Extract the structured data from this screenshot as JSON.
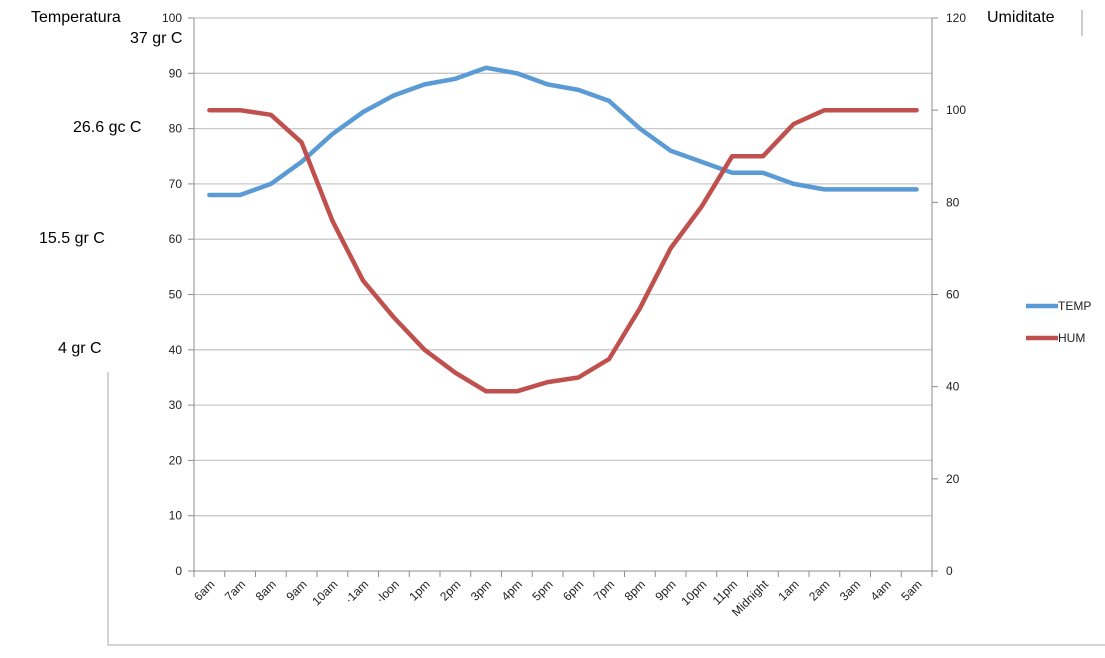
{
  "labels": {
    "left_title": "Temperatura",
    "right_title": "Umiditate",
    "celsius_marks": [
      "37 gr C",
      "26.6 gc C",
      "15.5 gr C",
      "4 gr C"
    ]
  },
  "colors": {
    "temp": "#5b9bd5",
    "hum": "#c0504d",
    "grid": "#c8c8c8",
    "axis": "#8c8c8c"
  },
  "chart_data": {
    "type": "line",
    "categories": [
      "6am",
      "7am",
      "8am",
      "9am",
      "10am",
      "11am",
      "Noon",
      "1pm",
      "2pm",
      "3pm",
      "4pm",
      "5pm",
      "6pm",
      "7pm",
      "8pm",
      "9pm",
      "10pm",
      "11pm",
      "Midnight",
      "1am",
      "2am",
      "3am",
      "4am",
      "5am"
    ],
    "category_display": [
      "6am",
      "7am",
      "8am",
      "9am",
      "10am",
      "·1am",
      "·loon",
      "1pm",
      "2pm",
      "3pm",
      "4pm",
      "5pm",
      "6pm",
      "7pm",
      "8pm",
      "9pm",
      "10pm",
      "11pm",
      "Midnight",
      "1am",
      "2am",
      "3am",
      "4am",
      "5am"
    ],
    "series": [
      {
        "name": "TEMP",
        "axis": "left",
        "values": [
          68,
          68,
          70,
          74,
          79,
          83,
          86,
          88,
          89,
          91,
          90,
          88,
          87,
          85,
          80,
          76,
          74,
          72,
          72,
          70,
          69,
          69,
          69,
          69
        ]
      },
      {
        "name": "HUM",
        "axis": "right",
        "values": [
          100,
          100,
          99,
          93,
          76,
          63,
          55,
          48,
          43,
          39,
          39,
          41,
          42,
          46,
          57,
          70,
          79,
          90,
          90,
          97,
          100,
          100,
          100,
          100
        ]
      }
    ],
    "y_left": {
      "min": 0,
      "max": 100,
      "ticks": [
        0,
        10,
        20,
        30,
        40,
        50,
        60,
        70,
        80,
        90,
        100
      ]
    },
    "y_right": {
      "min": 0,
      "max": 120,
      "ticks": [
        0,
        20,
        40,
        60,
        80,
        100,
        120
      ]
    },
    "legend": "right",
    "grid": true
  }
}
